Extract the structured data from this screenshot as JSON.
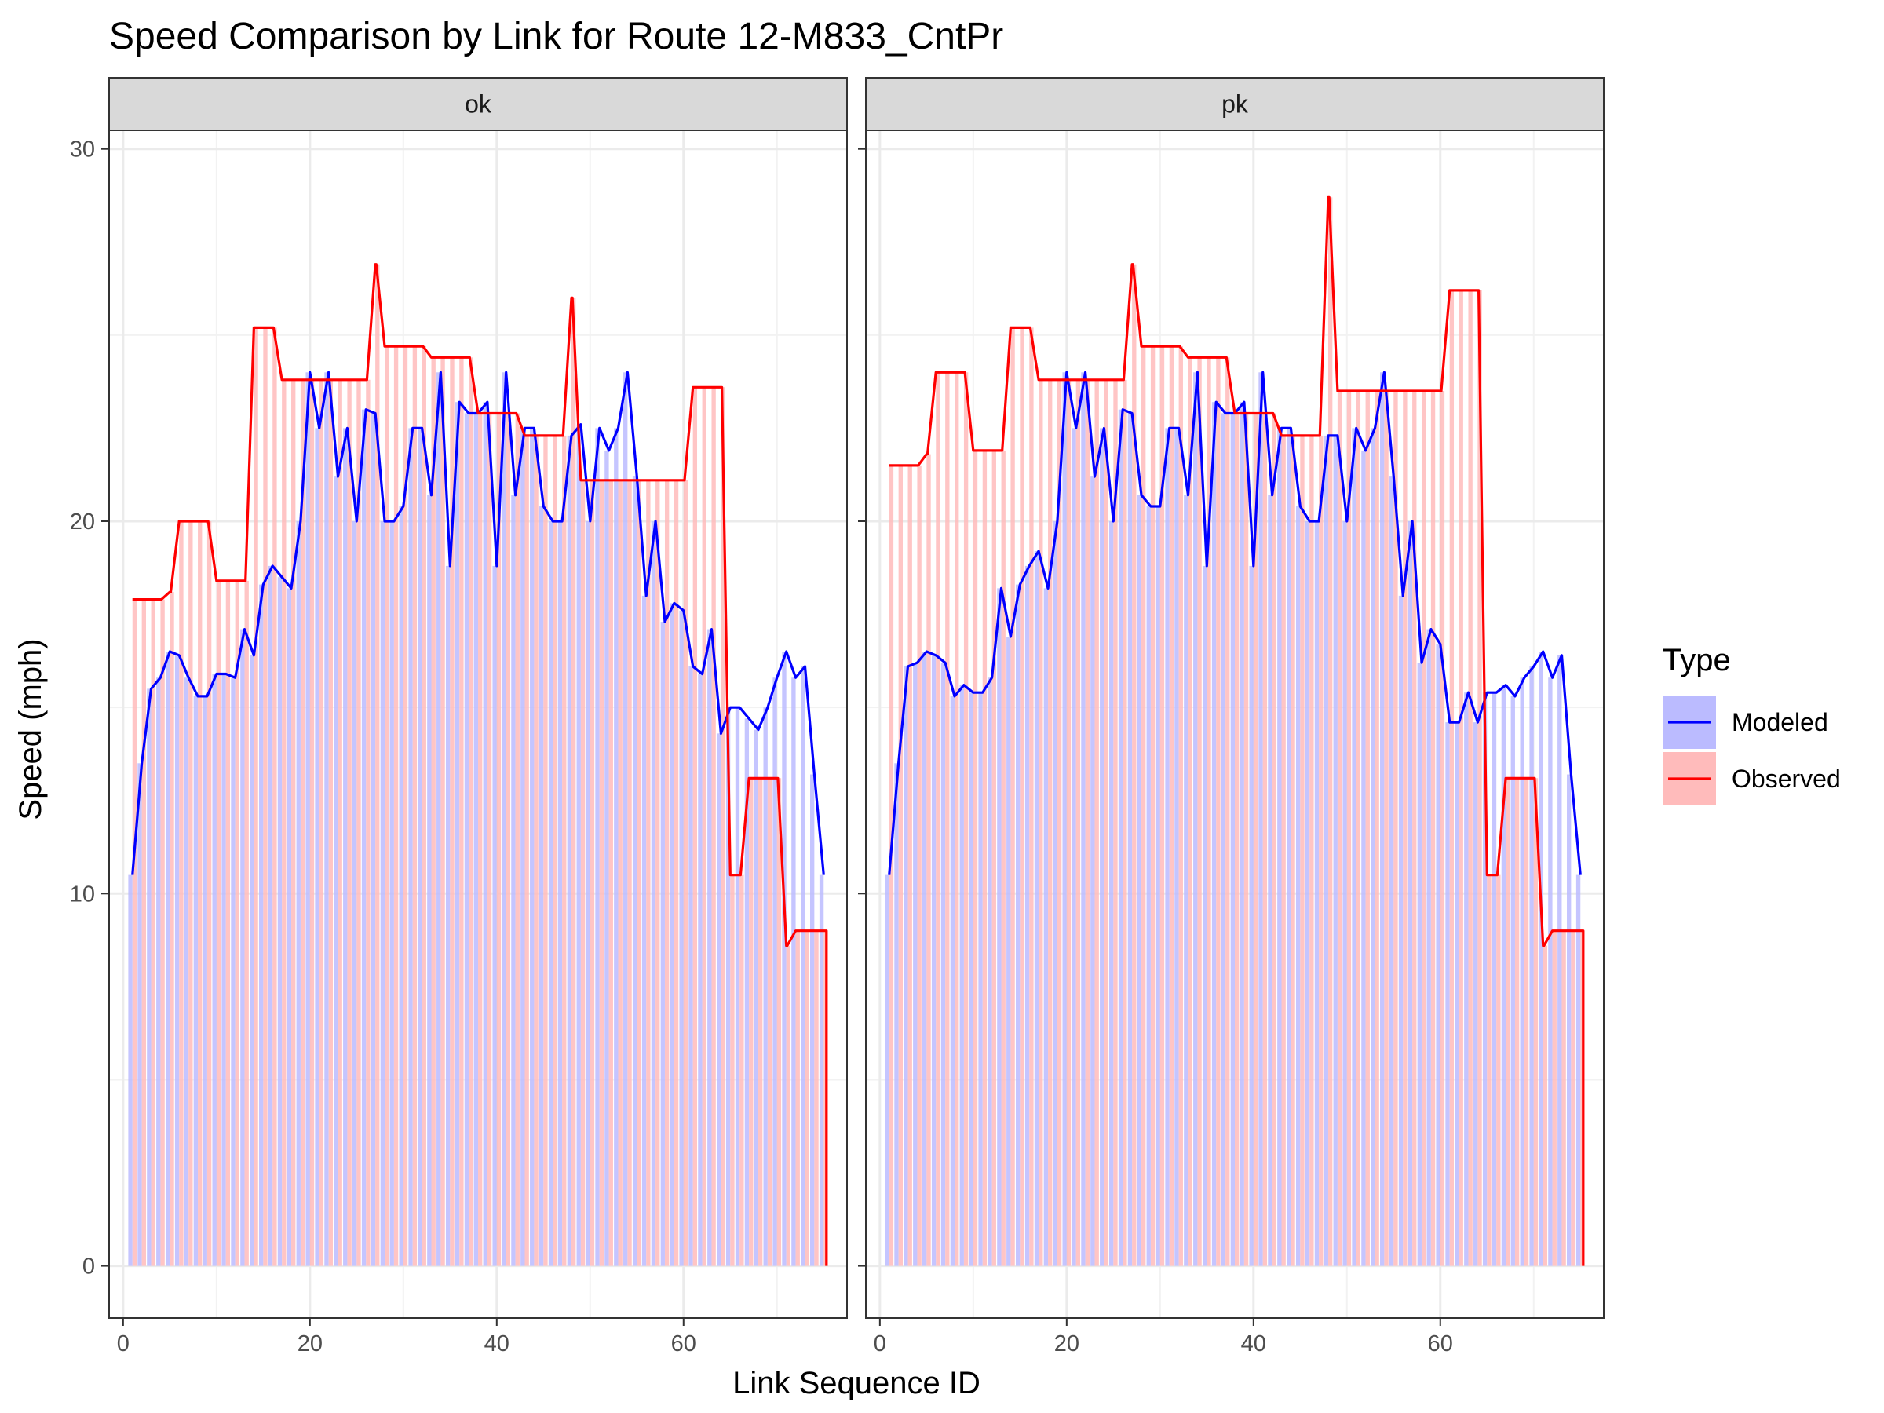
{
  "chart_data": {
    "type": "bar",
    "title": "Speed Comparison by Link for Route 12-M833_CntPr",
    "xlabel": "Link Sequence ID",
    "ylabel": "Speed (mph)",
    "xlim": [
      -1.5,
      77.5
    ],
    "ylim": [
      -1.4,
      30.5
    ],
    "x_ticks": [
      0,
      20,
      40,
      60
    ],
    "y_ticks": [
      0,
      10,
      20,
      30
    ],
    "grid": true,
    "legend": {
      "title": "Type",
      "position": "right",
      "entries": [
        {
          "name": "Modeled",
          "line_color": "#0000ff",
          "fill_color": "#bbbbff"
        },
        {
          "name": "Observed",
          "line_color": "#ff0000",
          "fill_color": "#ffbbbb"
        }
      ]
    },
    "panels": [
      {
        "label": "ok",
        "x": [
          1,
          2,
          3,
          4,
          5,
          6,
          7,
          8,
          9,
          10,
          11,
          12,
          13,
          14,
          15,
          16,
          17,
          18,
          19,
          20,
          21,
          22,
          23,
          24,
          25,
          26,
          27,
          28,
          29,
          30,
          31,
          32,
          33,
          34,
          35,
          36,
          37,
          38,
          39,
          40,
          41,
          42,
          43,
          44,
          45,
          46,
          47,
          48,
          49,
          50,
          51,
          52,
          53,
          54,
          55,
          56,
          57,
          58,
          59,
          60,
          61,
          62,
          63,
          64,
          65,
          66,
          67,
          68,
          69,
          70,
          71,
          72,
          73,
          74,
          75
        ],
        "series": [
          {
            "name": "Modeled",
            "values": [
              10.5,
              13.5,
              15.5,
              15.8,
              16.5,
              16.4,
              15.8,
              15.3,
              15.3,
              15.9,
              15.9,
              15.8,
              17.1,
              16.4,
              18.3,
              18.8,
              18.5,
              18.2,
              20.0,
              24.0,
              22.5,
              24.0,
              21.2,
              22.5,
              20.0,
              23.0,
              22.9,
              20.0,
              20.0,
              20.4,
              22.5,
              22.5,
              20.7,
              24.0,
              18.8,
              23.2,
              22.9,
              22.9,
              23.2,
              18.8,
              24.0,
              20.7,
              22.5,
              22.5,
              20.4,
              20.0,
              20.0,
              22.3,
              22.6,
              20.0,
              22.5,
              21.9,
              22.5,
              24.0,
              21.2,
              18.0,
              20.0,
              17.3,
              17.8,
              17.6,
              16.1,
              15.9,
              17.1,
              14.3,
              15.0,
              15.0,
              14.7,
              14.4,
              15.0,
              15.8,
              16.5,
              15.8,
              16.1,
              13.2,
              10.5
            ]
          },
          {
            "name": "Observed",
            "values": [
              17.9,
              17.9,
              17.9,
              17.9,
              18.1,
              20.0,
              20.0,
              20.0,
              20.0,
              18.4,
              18.4,
              18.4,
              18.4,
              25.2,
              25.2,
              25.2,
              23.8,
              23.8,
              23.8,
              23.8,
              23.8,
              23.8,
              23.8,
              23.8,
              23.8,
              23.8,
              26.9,
              24.7,
              24.7,
              24.7,
              24.7,
              24.7,
              24.4,
              24.4,
              24.4,
              24.4,
              24.4,
              22.9,
              22.9,
              22.9,
              22.9,
              22.9,
              22.3,
              22.3,
              22.3,
              22.3,
              22.3,
              26.0,
              21.1,
              21.1,
              21.1,
              21.1,
              21.1,
              21.1,
              21.1,
              21.1,
              21.1,
              21.1,
              21.1,
              21.1,
              23.6,
              23.6,
              23.6,
              23.6,
              10.5,
              10.5,
              13.1,
              13.1,
              13.1,
              13.1,
              8.6,
              9.0,
              9.0,
              9.0,
              9.0
            ]
          }
        ]
      },
      {
        "label": "pk",
        "x": [
          1,
          2,
          3,
          4,
          5,
          6,
          7,
          8,
          9,
          10,
          11,
          12,
          13,
          14,
          15,
          16,
          17,
          18,
          19,
          20,
          21,
          22,
          23,
          24,
          25,
          26,
          27,
          28,
          29,
          30,
          31,
          32,
          33,
          34,
          35,
          36,
          37,
          38,
          39,
          40,
          41,
          42,
          43,
          44,
          45,
          46,
          47,
          48,
          49,
          50,
          51,
          52,
          53,
          54,
          55,
          56,
          57,
          58,
          59,
          60,
          61,
          62,
          63,
          64,
          65,
          66,
          67,
          68,
          69,
          70,
          71,
          72,
          73,
          74,
          75
        ],
        "series": [
          {
            "name": "Modeled",
            "values": [
              10.5,
              13.5,
              16.1,
              16.2,
              16.5,
              16.4,
              16.2,
              15.3,
              15.6,
              15.4,
              15.4,
              15.8,
              18.2,
              16.9,
              18.3,
              18.8,
              19.2,
              18.2,
              20.0,
              24.0,
              22.5,
              24.0,
              21.2,
              22.5,
              20.0,
              23.0,
              22.9,
              20.7,
              20.4,
              20.4,
              22.5,
              22.5,
              20.7,
              24.0,
              18.8,
              23.2,
              22.9,
              22.9,
              23.2,
              18.8,
              24.0,
              20.7,
              22.5,
              22.5,
              20.4,
              20.0,
              20.0,
              22.3,
              22.3,
              20.0,
              22.5,
              21.9,
              22.5,
              24.0,
              21.2,
              18.0,
              20.0,
              16.2,
              17.1,
              16.7,
              14.6,
              14.6,
              15.4,
              14.6,
              15.4,
              15.4,
              15.6,
              15.3,
              15.8,
              16.1,
              16.5,
              15.8,
              16.4,
              13.2,
              10.5
            ]
          },
          {
            "name": "Observed",
            "values": [
              21.5,
              21.5,
              21.5,
              21.5,
              21.8,
              24.0,
              24.0,
              24.0,
              24.0,
              21.9,
              21.9,
              21.9,
              21.9,
              25.2,
              25.2,
              25.2,
              23.8,
              23.8,
              23.8,
              23.8,
              23.8,
              23.8,
              23.8,
              23.8,
              23.8,
              23.8,
              26.9,
              24.7,
              24.7,
              24.7,
              24.7,
              24.7,
              24.4,
              24.4,
              24.4,
              24.4,
              24.4,
              22.9,
              22.9,
              22.9,
              22.9,
              22.9,
              22.3,
              22.3,
              22.3,
              22.3,
              22.3,
              28.7,
              23.5,
              23.5,
              23.5,
              23.5,
              23.5,
              23.5,
              23.5,
              23.5,
              23.5,
              23.5,
              23.5,
              23.5,
              26.2,
              26.2,
              26.2,
              26.2,
              10.5,
              10.5,
              13.1,
              13.1,
              13.1,
              13.1,
              8.6,
              9.0,
              9.0,
              9.0,
              9.0
            ]
          }
        ]
      }
    ]
  }
}
